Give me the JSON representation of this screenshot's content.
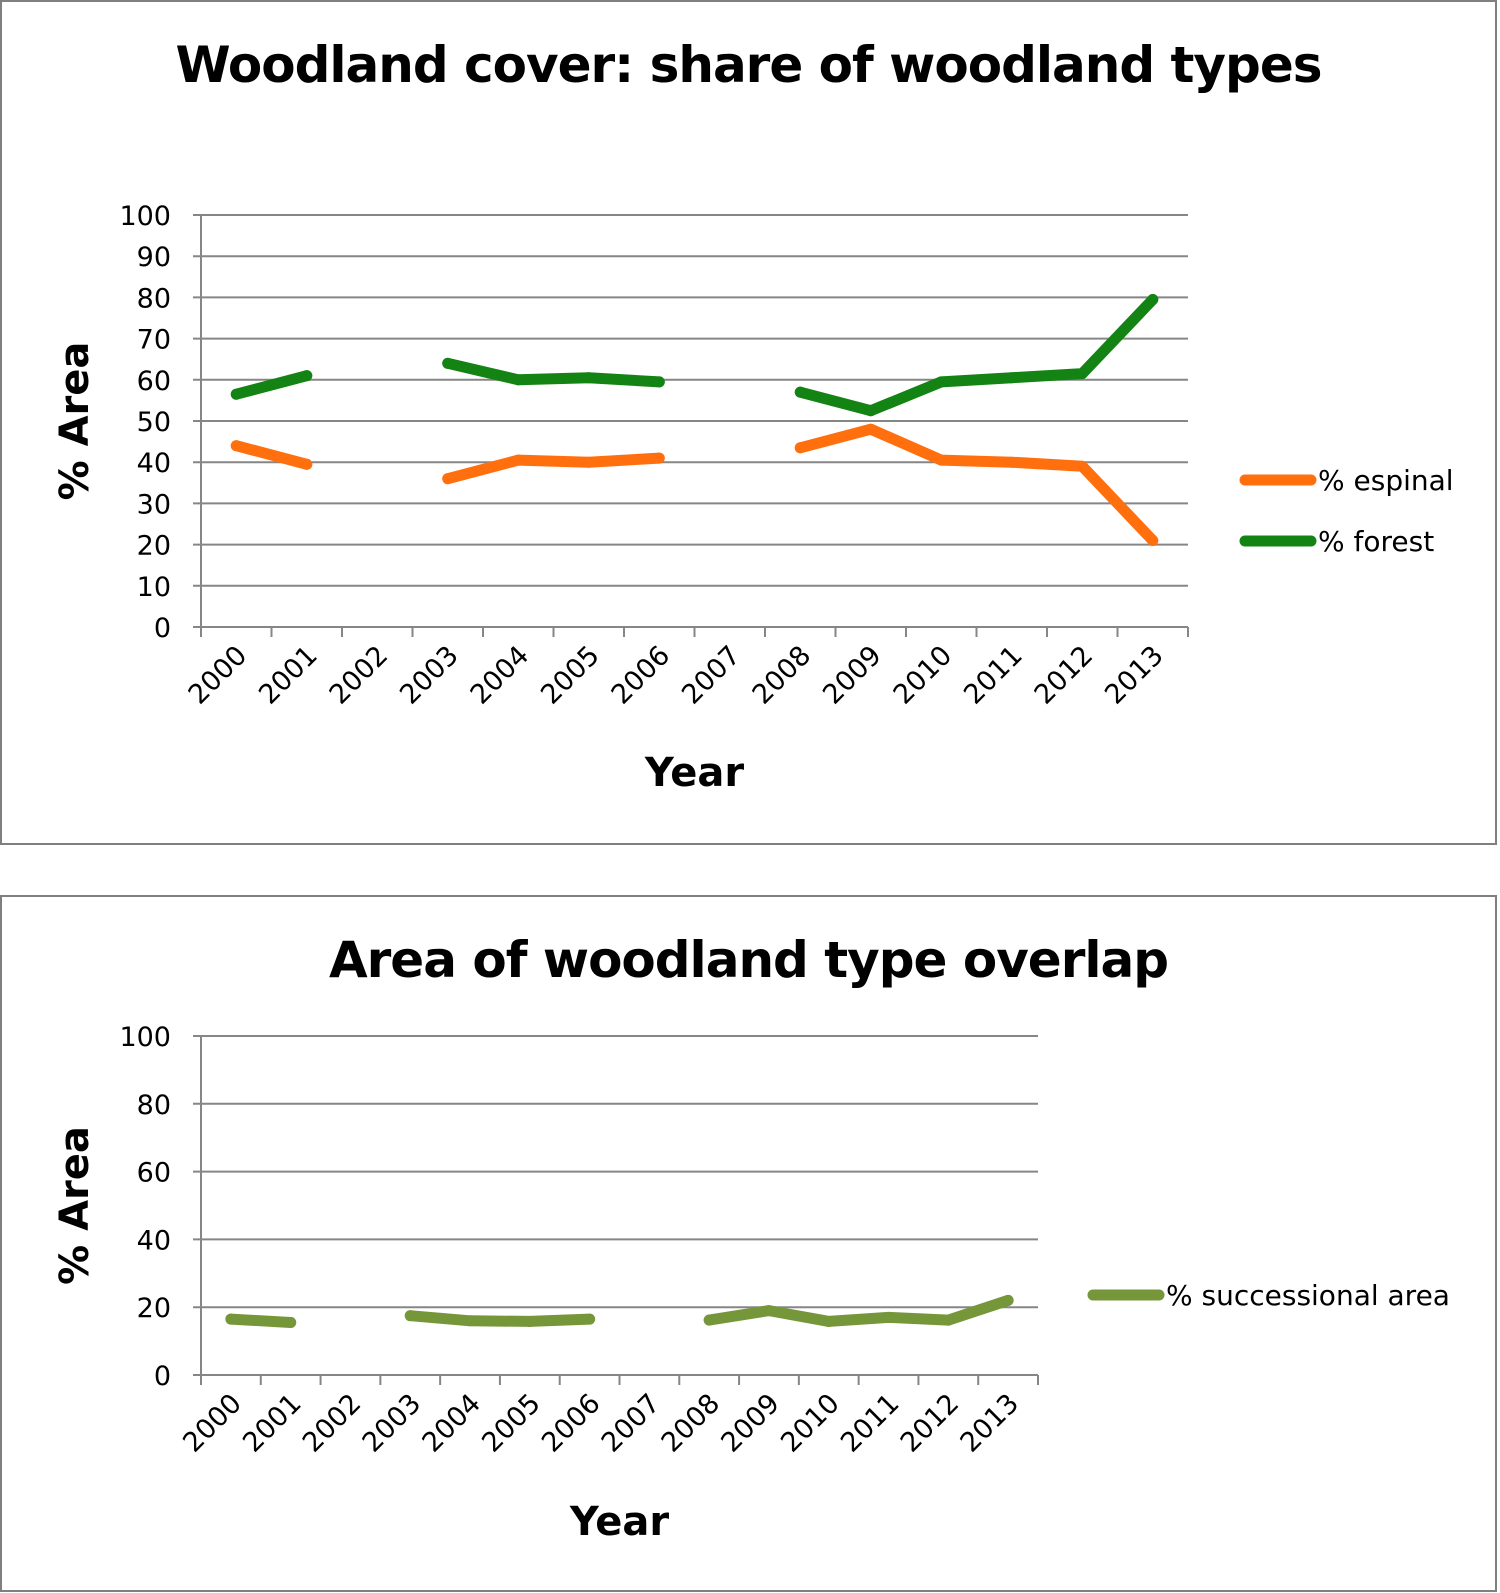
{
  "chart_data": [
    {
      "type": "line",
      "title": "Woodland cover: share of woodland types",
      "xlabel": "Year",
      "ylabel": "% Area",
      "ylim": [
        0,
        100
      ],
      "yticks": [
        "0",
        "10",
        "20",
        "30",
        "40",
        "50",
        "60",
        "70",
        "80",
        "90",
        "100"
      ],
      "categories": [
        "2000",
        "2001",
        "2002",
        "2003",
        "2004",
        "2005",
        "2006",
        "2007",
        "2008",
        "2009",
        "2010",
        "2011",
        "2012",
        "2013"
      ],
      "grid": true,
      "legend_position": "right",
      "series": [
        {
          "name": "% espinal",
          "color": "#ff6f0e",
          "values": [
            44,
            39.5,
            null,
            36,
            40.5,
            40,
            41,
            null,
            43.5,
            48,
            40.5,
            40,
            39,
            21
          ]
        },
        {
          "name": "% forest",
          "color": "#138313",
          "values": [
            56.5,
            61,
            null,
            64,
            60,
            60.5,
            59.5,
            null,
            57,
            52.5,
            59.5,
            60.5,
            61.5,
            79.5
          ]
        }
      ]
    },
    {
      "type": "line",
      "title": "Area of woodland type overlap",
      "xlabel": "Year",
      "ylabel": "% Area",
      "ylim": [
        0,
        100
      ],
      "yticks": [
        "0",
        "20",
        "40",
        "60",
        "80",
        "100"
      ],
      "categories": [
        "2000",
        "2001",
        "2002",
        "2003",
        "2004",
        "2005",
        "2006",
        "2007",
        "2008",
        "2009",
        "2010",
        "2011",
        "2012",
        "2013"
      ],
      "grid": true,
      "legend_position": "right",
      "series": [
        {
          "name": "% successional area",
          "color": "#76963a",
          "values": [
            16.5,
            15.5,
            null,
            17.5,
            16,
            15.8,
            16.5,
            null,
            16.2,
            19,
            15.8,
            17,
            16.2,
            22
          ]
        }
      ]
    }
  ]
}
